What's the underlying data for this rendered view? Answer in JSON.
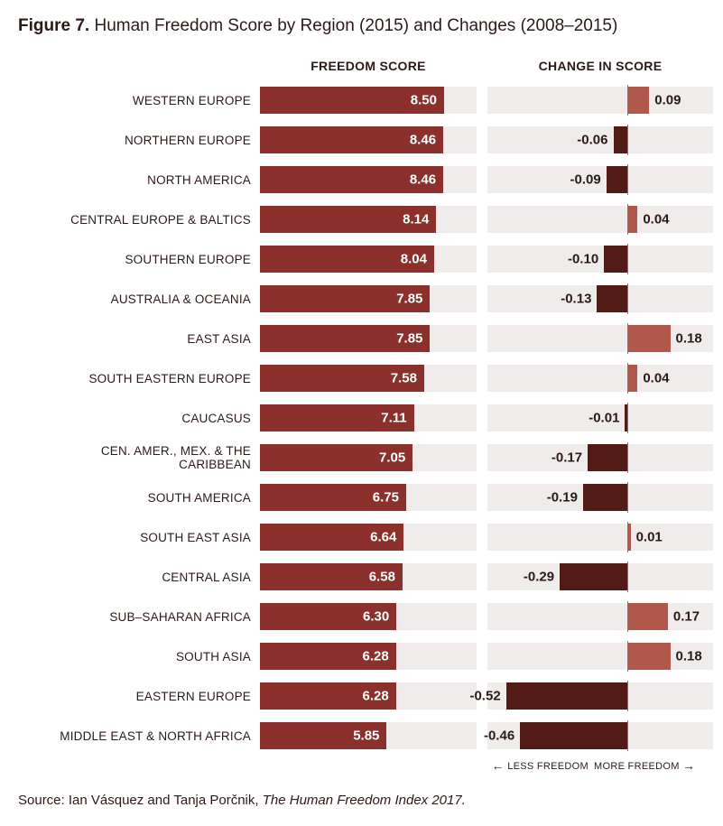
{
  "title_prefix": "Figure 7.",
  "title_rest": " Human Freedom Score by Region (2015) and Changes (2008–2015)",
  "score_header": "FREEDOM SCORE",
  "change_header": "CHANGE IN SCORE",
  "less_label": "LESS FREEDOM",
  "more_label": "MORE FREEDOM",
  "source_prefix": "Source: Ian Vásquez and Tanja Porčnik, ",
  "source_italic": "The Human Freedom Index 2017.",
  "style": {
    "row_bg": "#efeceb",
    "score_bar_color": "#8b302a",
    "neg_bar_color": "#521b15",
    "pos_bar_color": "#b1584d",
    "axis_color": "#7a7a7a",
    "text_color": "#2b1a17",
    "score_max": 10.0,
    "change_scale": 0.6,
    "change_axis_frac": 0.62
  },
  "rows": [
    {
      "label": "WESTERN EUROPE",
      "score": 8.5,
      "score_txt": "8.50",
      "change": 0.09,
      "change_txt": "0.09"
    },
    {
      "label": "NORTHERN EUROPE",
      "score": 8.46,
      "score_txt": "8.46",
      "change": -0.06,
      "change_txt": "-0.06"
    },
    {
      "label": "NORTH AMERICA",
      "score": 8.46,
      "score_txt": "8.46",
      "change": -0.09,
      "change_txt": "-0.09"
    },
    {
      "label": "CENTRAL EUROPE & BALTICS",
      "score": 8.14,
      "score_txt": "8.14",
      "change": 0.04,
      "change_txt": "0.04"
    },
    {
      "label": "SOUTHERN EUROPE",
      "score": 8.04,
      "score_txt": "8.04",
      "change": -0.1,
      "change_txt": "-0.10"
    },
    {
      "label": "AUSTRALIA & OCEANIA",
      "score": 7.85,
      "score_txt": "7.85",
      "change": -0.13,
      "change_txt": "-0.13"
    },
    {
      "label": "EAST ASIA",
      "score": 7.85,
      "score_txt": "7.85",
      "change": 0.18,
      "change_txt": "0.18"
    },
    {
      "label": "SOUTH EASTERN EUROPE",
      "score": 7.58,
      "score_txt": "7.58",
      "change": 0.04,
      "change_txt": "0.04"
    },
    {
      "label": "CAUCASUS",
      "score": 7.11,
      "score_txt": "7.11",
      "change": -0.01,
      "change_txt": "-0.01"
    },
    {
      "label": "CEN. AMER., MEX. & THE CARIBBEAN",
      "score": 7.05,
      "score_txt": "7.05",
      "change": -0.17,
      "change_txt": "-0.17"
    },
    {
      "label": "SOUTH AMERICA",
      "score": 6.75,
      "score_txt": "6.75",
      "change": -0.19,
      "change_txt": "-0.19"
    },
    {
      "label": "SOUTH EAST ASIA",
      "score": 6.64,
      "score_txt": "6.64",
      "change": 0.01,
      "change_txt": "0.01"
    },
    {
      "label": "CENTRAL ASIA",
      "score": 6.58,
      "score_txt": "6.58",
      "change": -0.29,
      "change_txt": "-0.29"
    },
    {
      "label": "SUB–SAHARAN AFRICA",
      "score": 6.3,
      "score_txt": "6.30",
      "change": 0.17,
      "change_txt": "0.17"
    },
    {
      "label": "SOUTH ASIA",
      "score": 6.28,
      "score_txt": "6.28",
      "change": 0.18,
      "change_txt": "0.18"
    },
    {
      "label": "EASTERN EUROPE",
      "score": 6.28,
      "score_txt": "6.28",
      "change": -0.52,
      "change_txt": "-0.52"
    },
    {
      "label": "MIDDLE EAST & NORTH AFRICA",
      "score": 5.85,
      "score_txt": "5.85",
      "change": -0.46,
      "change_txt": "-0.46"
    }
  ]
}
